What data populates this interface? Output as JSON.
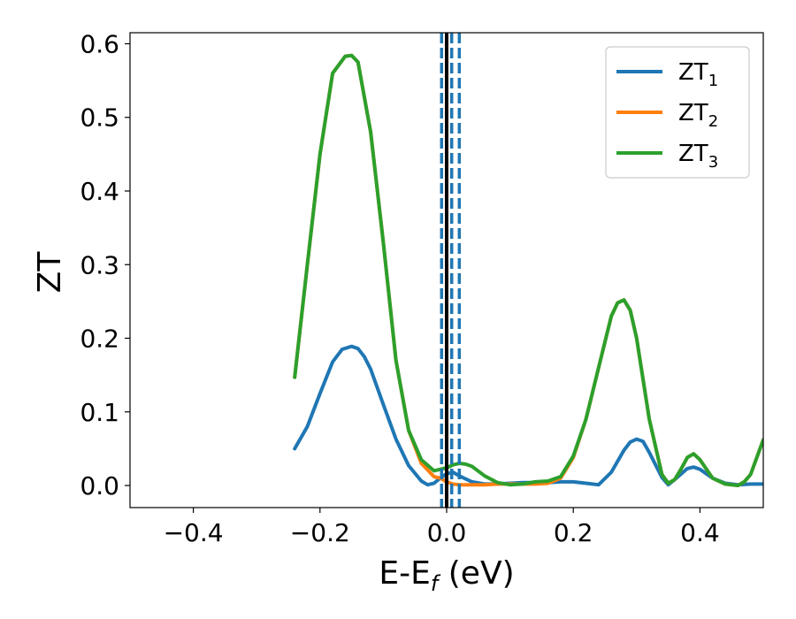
{
  "chart_data": {
    "type": "line",
    "title": "",
    "xlabel": {
      "main": "E-E",
      "sub": "f",
      "suffix": " (eV)"
    },
    "ylabel": "ZT",
    "xlim": [
      -0.5,
      0.5
    ],
    "ylim": [
      -0.03,
      0.615
    ],
    "xticks": [
      -0.4,
      -0.2,
      0.0,
      0.2,
      0.4
    ],
    "xtick_labels": [
      "−0.4",
      "−0.2",
      "0.0",
      "0.2",
      "0.4"
    ],
    "yticks": [
      0.0,
      0.1,
      0.2,
      0.3,
      0.4,
      0.5,
      0.6
    ],
    "ytick_labels": [
      "0.0",
      "0.1",
      "0.2",
      "0.3",
      "0.4",
      "0.5",
      "0.6"
    ],
    "legend_position": "top-right",
    "grid": false,
    "vlines": [
      {
        "x": -0.008,
        "style": "dashed",
        "color": "#1f77b4"
      },
      {
        "x": 0.008,
        "style": "dashed",
        "color": "#1f77b4"
      },
      {
        "x": 0.02,
        "style": "dashed",
        "color": "#1f77b4"
      },
      {
        "x": 0.0,
        "style": "solid",
        "color": "#000000"
      }
    ],
    "series": [
      {
        "name": {
          "main": "ZT",
          "sub": "1"
        },
        "color": "#1f77b4",
        "x": [
          -0.24,
          -0.22,
          -0.2,
          -0.18,
          -0.165,
          -0.15,
          -0.14,
          -0.13,
          -0.12,
          -0.1,
          -0.08,
          -0.06,
          -0.04,
          -0.03,
          -0.02,
          -0.01,
          0.0,
          0.01,
          0.02,
          0.04,
          0.06,
          0.08,
          0.1,
          0.12,
          0.14,
          0.16,
          0.18,
          0.2,
          0.22,
          0.24,
          0.26,
          0.28,
          0.29,
          0.3,
          0.31,
          0.32,
          0.34,
          0.35,
          0.36,
          0.38,
          0.39,
          0.4,
          0.42,
          0.44,
          0.46,
          0.48,
          0.5
        ],
        "y": [
          0.05,
          0.08,
          0.125,
          0.168,
          0.185,
          0.189,
          0.186,
          0.175,
          0.158,
          0.11,
          0.063,
          0.027,
          0.006,
          0.001,
          0.003,
          0.01,
          0.016,
          0.018,
          0.013,
          0.005,
          0.002,
          0.002,
          0.003,
          0.004,
          0.004,
          0.004,
          0.005,
          0.005,
          0.003,
          0.001,
          0.018,
          0.048,
          0.059,
          0.063,
          0.06,
          0.045,
          0.011,
          0.001,
          0.008,
          0.023,
          0.025,
          0.022,
          0.01,
          0.003,
          0.001,
          0.002,
          0.002
        ]
      },
      {
        "name": {
          "main": "ZT",
          "sub": "2"
        },
        "color": "#ff7f0e",
        "x": [
          -0.24,
          -0.22,
          -0.2,
          -0.18,
          -0.16,
          -0.15,
          -0.14,
          -0.12,
          -0.1,
          -0.08,
          -0.06,
          -0.04,
          -0.02,
          -0.01,
          0.0,
          0.01,
          0.02,
          0.04,
          0.06,
          0.08,
          0.1,
          0.12,
          0.14,
          0.16,
          0.18,
          0.2,
          0.22,
          0.24,
          0.26,
          0.27,
          0.28,
          0.29,
          0.3,
          0.32,
          0.34,
          0.35,
          0.36,
          0.37,
          0.38,
          0.39,
          0.4,
          0.42,
          0.44,
          0.46,
          0.47,
          0.48,
          0.5
        ],
        "y": [
          0.147,
          0.3,
          0.45,
          0.56,
          0.583,
          0.584,
          0.575,
          0.48,
          0.33,
          0.17,
          0.075,
          0.03,
          0.012,
          0.01,
          0.005,
          0.002,
          0.001,
          0.001,
          0.001,
          0.002,
          0.002,
          0.002,
          0.002,
          0.003,
          0.01,
          0.038,
          0.09,
          0.16,
          0.23,
          0.248,
          0.252,
          0.238,
          0.2,
          0.09,
          0.015,
          0.003,
          0.008,
          0.022,
          0.038,
          0.043,
          0.035,
          0.01,
          0.002,
          0.0,
          0.005,
          0.015,
          0.062
        ]
      },
      {
        "name": {
          "main": "ZT",
          "sub": "3"
        },
        "color": "#2ca02c",
        "x": [
          -0.24,
          -0.22,
          -0.2,
          -0.18,
          -0.16,
          -0.15,
          -0.14,
          -0.12,
          -0.1,
          -0.08,
          -0.06,
          -0.04,
          -0.02,
          0.0,
          0.01,
          0.02,
          0.03,
          0.04,
          0.06,
          0.08,
          0.1,
          0.12,
          0.14,
          0.16,
          0.18,
          0.2,
          0.22,
          0.24,
          0.26,
          0.27,
          0.28,
          0.29,
          0.3,
          0.32,
          0.34,
          0.35,
          0.36,
          0.37,
          0.38,
          0.39,
          0.4,
          0.42,
          0.44,
          0.46,
          0.47,
          0.48,
          0.5
        ],
        "y": [
          0.147,
          0.3,
          0.45,
          0.56,
          0.583,
          0.584,
          0.575,
          0.48,
          0.33,
          0.17,
          0.075,
          0.035,
          0.02,
          0.024,
          0.028,
          0.03,
          0.029,
          0.026,
          0.013,
          0.004,
          0.001,
          0.002,
          0.005,
          0.006,
          0.012,
          0.04,
          0.09,
          0.16,
          0.23,
          0.248,
          0.252,
          0.238,
          0.2,
          0.09,
          0.015,
          0.003,
          0.008,
          0.022,
          0.038,
          0.043,
          0.035,
          0.01,
          0.002,
          0.0,
          0.005,
          0.015,
          0.062
        ]
      }
    ]
  }
}
